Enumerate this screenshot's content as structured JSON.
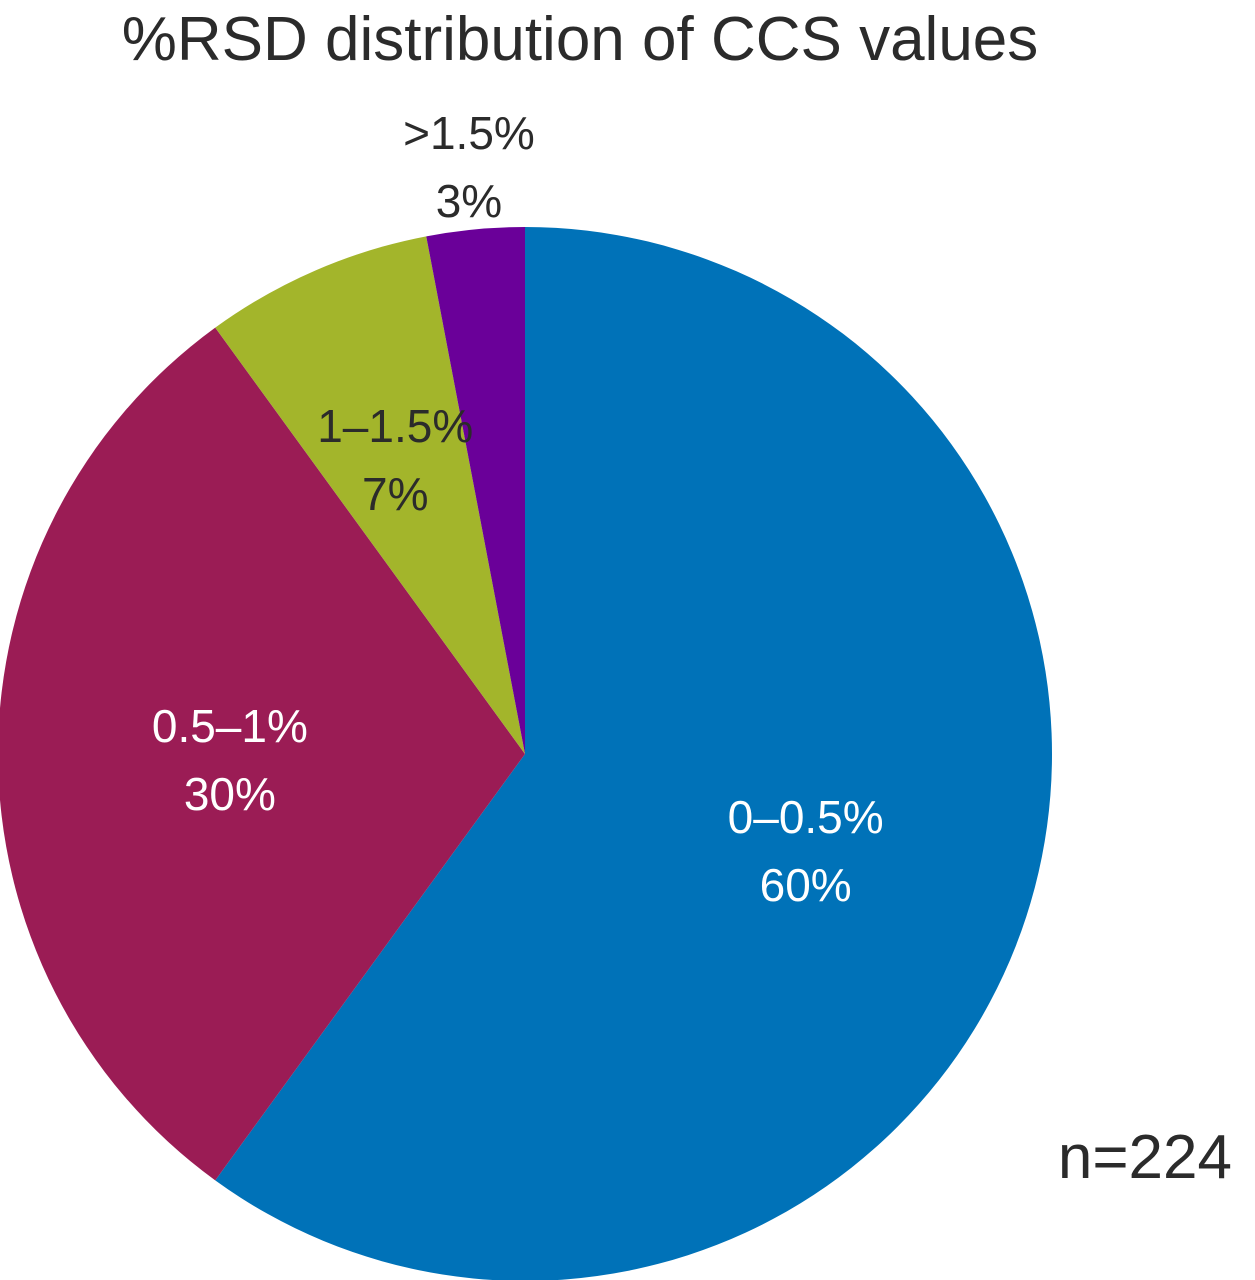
{
  "chart_data": {
    "type": "pie",
    "title": "%RSD distribution of CCS values",
    "categories": [
      "0–0.5%",
      "0.5–1%",
      "1–1.5%",
      ">1.5%"
    ],
    "values": [
      60,
      30,
      7,
      3
    ],
    "value_labels": [
      "60%",
      "30%",
      "7%",
      "3%"
    ],
    "colors": [
      "#0072b8",
      "#9b1c55",
      "#a3b52b",
      "#6a0099"
    ],
    "label_colors": [
      "#ffffff",
      "#ffffff",
      "#2b2b2b",
      "#2b2b2b"
    ],
    "start_angle": "12 o'clock",
    "direction": "clockwise",
    "annotation": "n=224"
  }
}
